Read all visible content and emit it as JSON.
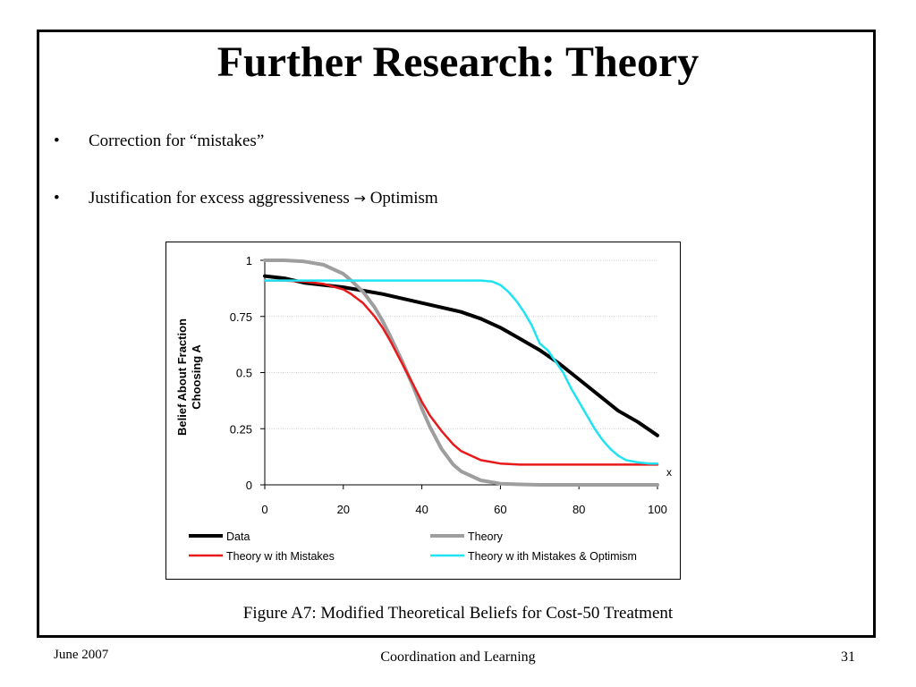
{
  "slide": {
    "title": "Further Research: Theory",
    "bullets": [
      {
        "text": "Correction for “mistakes”"
      },
      {
        "text": "Justification for excess aggressiveness",
        "arrow_icon": "right-arrow-icon",
        "arrow_glyph": "→",
        "after": "Optimism"
      }
    ],
    "caption": "Figure A7: Modified Theoretical Beliefs for Cost-50 Treatment",
    "footer": {
      "date": "June 2007",
      "center": "Coordination and Learning",
      "page": "31"
    }
  },
  "chart_data": {
    "type": "line",
    "xlabel": "x",
    "ylabel": "Belief About Fraction Choosing A",
    "ylabel_lines": [
      "Belief About Fraction",
      "Choosing A"
    ],
    "xlim": [
      0,
      100
    ],
    "ylim": [
      0,
      1
    ],
    "x_ticks": [
      0,
      20,
      40,
      60,
      80,
      100
    ],
    "x_tick_labels": [
      "0",
      "20",
      "40",
      "60",
      "80",
      "100"
    ],
    "y_ticks": [
      0,
      0.25,
      0.5,
      0.75,
      1
    ],
    "y_tick_labels": [
      "0",
      "0.25",
      "0.5",
      "0.75",
      "1"
    ],
    "grid": "horizontal",
    "legend_position": "bottom",
    "series": [
      {
        "name": "Data",
        "color": "#000000",
        "x": [
          0,
          5,
          10,
          15,
          20,
          25,
          30,
          35,
          40,
          45,
          50,
          55,
          60,
          65,
          70,
          75,
          80,
          85,
          90,
          95,
          100
        ],
        "y": [
          0.93,
          0.92,
          0.9,
          0.89,
          0.88,
          0.865,
          0.85,
          0.83,
          0.81,
          0.79,
          0.77,
          0.74,
          0.7,
          0.65,
          0.6,
          0.54,
          0.47,
          0.4,
          0.33,
          0.28,
          0.22
        ]
      },
      {
        "name": "Theory",
        "color": "#9e9e9e",
        "x": [
          0,
          5,
          10,
          15,
          20,
          22,
          25,
          28,
          30,
          32,
          35,
          38,
          40,
          42,
          45,
          48,
          50,
          55,
          60,
          65,
          70,
          80,
          90,
          100
        ],
        "y": [
          1.0,
          1.0,
          0.995,
          0.98,
          0.94,
          0.91,
          0.86,
          0.79,
          0.73,
          0.66,
          0.55,
          0.43,
          0.34,
          0.26,
          0.16,
          0.09,
          0.06,
          0.02,
          0.005,
          0.002,
          0.0,
          0.0,
          0.0,
          0.0
        ]
      },
      {
        "name": "Theory w ith Mistakes",
        "color": "#e8191b",
        "x": [
          0,
          5,
          10,
          15,
          20,
          22,
          25,
          28,
          30,
          32,
          35,
          38,
          40,
          42,
          45,
          48,
          50,
          55,
          60,
          65,
          70,
          80,
          90,
          100
        ],
        "y": [
          0.91,
          0.91,
          0.905,
          0.895,
          0.87,
          0.85,
          0.81,
          0.75,
          0.7,
          0.64,
          0.54,
          0.44,
          0.37,
          0.31,
          0.24,
          0.18,
          0.15,
          0.11,
          0.095,
          0.09,
          0.09,
          0.09,
          0.09,
          0.09
        ]
      },
      {
        "name": "Theory w ith Mistakes & Optimism",
        "color": "#1fe3f2",
        "x": [
          0,
          10,
          20,
          30,
          40,
          50,
          55,
          58,
          60,
          62,
          64,
          66,
          68,
          70,
          72,
          74,
          76,
          78,
          80,
          82,
          84,
          86,
          88,
          90,
          92,
          95,
          98,
          100
        ],
        "y": [
          0.91,
          0.91,
          0.91,
          0.91,
          0.91,
          0.91,
          0.91,
          0.905,
          0.89,
          0.86,
          0.82,
          0.77,
          0.71,
          0.63,
          0.6,
          0.55,
          0.5,
          0.43,
          0.37,
          0.31,
          0.25,
          0.2,
          0.16,
          0.13,
          0.11,
          0.1,
          0.095,
          0.095
        ]
      }
    ]
  }
}
